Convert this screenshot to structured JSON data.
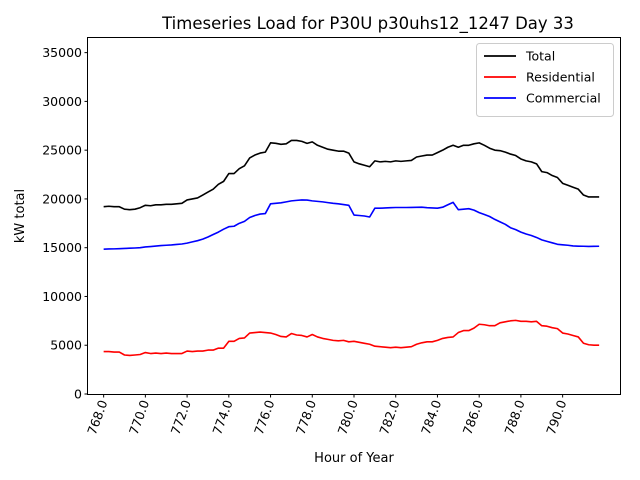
{
  "chart_data": {
    "type": "line",
    "title": "Timeseries Load for P30U p30uhs12_1247  Day 33",
    "xlabel": "Hour of Year",
    "ylabel": "kW total",
    "xlim": [
      767.25,
      792.75
    ],
    "ylim": [
      0,
      36500
    ],
    "x_ticks": [
      768,
      770,
      772,
      774,
      776,
      778,
      780,
      782,
      784,
      786,
      788,
      790
    ],
    "x_tick_labels": [
      "768.0",
      "770.0",
      "772.0",
      "774.0",
      "776.0",
      "778.0",
      "780.0",
      "782.0",
      "784.0",
      "786.0",
      "788.0",
      "790.0"
    ],
    "y_ticks": [
      0,
      5000,
      10000,
      15000,
      20000,
      25000,
      30000,
      35000
    ],
    "y_tick_labels": [
      "0",
      "5000",
      "10000",
      "15000",
      "20000",
      "25000",
      "30000",
      "35000"
    ],
    "x_start": 768.0,
    "x_step": 0.25,
    "legend_position": "top-right",
    "series": [
      {
        "name": "Total",
        "color": "#000000",
        "values": [
          19200,
          19250,
          19200,
          19200,
          18950,
          18900,
          18950,
          19100,
          19350,
          19300,
          19400,
          19400,
          19450,
          19450,
          19500,
          19550,
          19900,
          20000,
          20100,
          20400,
          20700,
          21000,
          21500,
          21800,
          22600,
          22600,
          23100,
          23400,
          24200,
          24500,
          24700,
          24800,
          25750,
          25700,
          25600,
          25650,
          26000,
          26000,
          25900,
          25700,
          25850,
          25500,
          25300,
          25100,
          25000,
          24900,
          24900,
          24700,
          23800,
          23600,
          23450,
          23300,
          23900,
          23800,
          23850,
          23800,
          23900,
          23850,
          23900,
          23950,
          24300,
          24400,
          24500,
          24500,
          24750,
          25000,
          25300,
          25500,
          25300,
          25500,
          25500,
          25650,
          25750,
          25500,
          25200,
          25000,
          24950,
          24800,
          24600,
          24450,
          24100,
          23900,
          23800,
          23600,
          22800,
          22700,
          22400,
          22200,
          21600,
          21400,
          21200,
          21000,
          20400,
          20200,
          20200,
          20200
        ]
      },
      {
        "name": "Residential",
        "color": "#ff0000",
        "values": [
          4350,
          4350,
          4300,
          4300,
          4000,
          3950,
          4000,
          4050,
          4250,
          4150,
          4200,
          4150,
          4200,
          4150,
          4150,
          4150,
          4400,
          4350,
          4400,
          4400,
          4500,
          4500,
          4700,
          4700,
          5400,
          5400,
          5700,
          5750,
          6250,
          6300,
          6350,
          6300,
          6250,
          6100,
          5900,
          5850,
          6200,
          6050,
          6000,
          5850,
          6100,
          5850,
          5700,
          5600,
          5500,
          5450,
          5500,
          5350,
          5400,
          5300,
          5200,
          5100,
          4900,
          4850,
          4800,
          4750,
          4800,
          4750,
          4800,
          4850,
          5100,
          5250,
          5350,
          5350,
          5500,
          5700,
          5800,
          5850,
          6300,
          6500,
          6500,
          6750,
          7150,
          7100,
          7000,
          7000,
          7300,
          7400,
          7500,
          7550,
          7450,
          7450,
          7400,
          7450,
          7000,
          6950,
          6800,
          6700,
          6250,
          6150,
          6000,
          5850,
          5200,
          5050,
          5000,
          5000
        ]
      },
      {
        "name": "Commercial",
        "color": "#0000ff",
        "values": [
          14850,
          14870,
          14880,
          14900,
          14920,
          14950,
          14970,
          15000,
          15080,
          15120,
          15170,
          15220,
          15250,
          15280,
          15330,
          15380,
          15470,
          15600,
          15720,
          15880,
          16100,
          16350,
          16600,
          16900,
          17150,
          17200,
          17500,
          17700,
          18100,
          18300,
          18450,
          18500,
          19500,
          19550,
          19600,
          19700,
          19800,
          19850,
          19900,
          19880,
          19800,
          19750,
          19700,
          19620,
          19550,
          19500,
          19420,
          19350,
          18350,
          18300,
          18250,
          18150,
          19050,
          19050,
          19080,
          19100,
          19120,
          19120,
          19120,
          19130,
          19140,
          19150,
          19100,
          19080,
          19050,
          19150,
          19400,
          19650,
          18900,
          18950,
          19000,
          18850,
          18600,
          18400,
          18200,
          17900,
          17650,
          17400,
          17050,
          16850,
          16600,
          16400,
          16250,
          16050,
          15800,
          15650,
          15500,
          15350,
          15300,
          15250,
          15180,
          15160,
          15150,
          15130,
          15140,
          15150
        ]
      }
    ]
  }
}
